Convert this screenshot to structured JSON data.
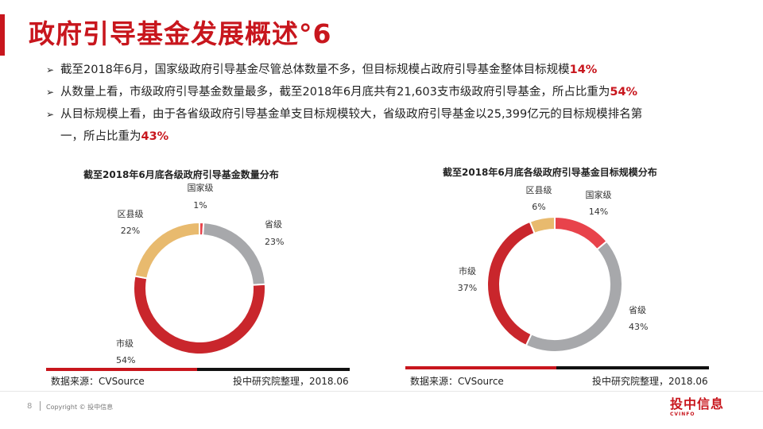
{
  "slide": {
    "title": "政府引导基金发展概述°6",
    "bullets": [
      {
        "text": "截至2018年6月，国家级政府引导基金尽管总体数量不多，但目标规模占政府引导基金整体目标规模",
        "highlight": "14%",
        "line2": ""
      },
      {
        "text": "从数量上看，市级政府引导基金数量最多，截至2018年6月底共有21,603支市级政府引导基金，所占比重为",
        "highlight": "54%",
        "line2": ""
      },
      {
        "text": "从目标规模上看，由于各省级政府引导基金单支目标规模较大，省级政府引导基金以25,399亿元的目标规模排名第",
        "highlight": "43%",
        "line2": "一，所占比重为"
      }
    ]
  },
  "chart_data": [
    {
      "type": "pie",
      "title": "截至2018年6月底各级政府引导基金数量分布",
      "donut": true,
      "slices": [
        {
          "label": "国家级",
          "value": 1,
          "display": "1%",
          "color": "#e8434b"
        },
        {
          "label": "省级",
          "value": 23,
          "display": "23%",
          "color": "#a7a8ab"
        },
        {
          "label": "市级",
          "value": 54,
          "display": "54%",
          "color": "#c9262c"
        },
        {
          "label": "区县级",
          "value": 22,
          "display": "22%",
          "color": "#e8ba6e"
        }
      ],
      "source_left": "数据来源：CVSource",
      "source_right": "投中研究院整理，2018.06"
    },
    {
      "type": "pie",
      "title": "截至2018年6月底各级政府引导基金目标规模分布",
      "donut": true,
      "slices": [
        {
          "label": "国家级",
          "value": 14,
          "display": "14%",
          "color": "#e8434b"
        },
        {
          "label": "省级",
          "value": 43,
          "display": "43%",
          "color": "#a7a8ab"
        },
        {
          "label": "市级",
          "value": 37,
          "display": "37%",
          "color": "#c9262c"
        },
        {
          "label": "区县级",
          "value": 6,
          "display": "6%",
          "color": "#e8ba6e"
        }
      ],
      "source_left": "数据来源：CVSource",
      "source_right": "投中研究院整理，2018.06"
    }
  ],
  "footer": {
    "page_number": "8",
    "copyright": "Copyright © 投中信息",
    "logo_text": "投中信息",
    "logo_sub": "CVINFO"
  }
}
